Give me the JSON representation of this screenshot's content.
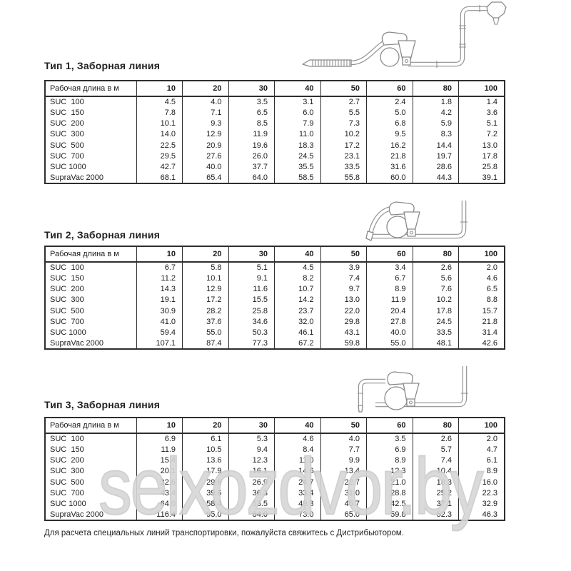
{
  "document": {
    "header_label": "Рабочая длина в м",
    "columns": [
      "10",
      "20",
      "30",
      "40",
      "50",
      "60",
      "80",
      "100"
    ],
    "sections": [
      {
        "title": "Тип 1, Заборная линия",
        "rows": [
          {
            "model": "SUC  100",
            "values": [
              "4.5",
              "4.0",
              "3.5",
              "3.1",
              "2.7",
              "2.4",
              "1.8",
              "1.4"
            ]
          },
          {
            "model": "SUC  150",
            "values": [
              "7.8",
              "7.1",
              "6.5",
              "6.0",
              "5.5",
              "5.0",
              "4.2",
              "3.6"
            ]
          },
          {
            "model": "SUC  200",
            "values": [
              "10.1",
              "9.3",
              "8.5",
              "7.9",
              "7.3",
              "6.8",
              "5.9",
              "5.1"
            ]
          },
          {
            "model": "SUC  300",
            "values": [
              "14.0",
              "12.9",
              "11.9",
              "11.0",
              "10.2",
              "9.5",
              "8.3",
              "7.2"
            ]
          },
          {
            "model": "SUC  500",
            "values": [
              "22.5",
              "20.9",
              "19.6",
              "18.3",
              "17.2",
              "16.2",
              "14.4",
              "13.0"
            ]
          },
          {
            "model": "SUC  700",
            "values": [
              "29.5",
              "27.6",
              "26.0",
              "24.5",
              "23.1",
              "21.8",
              "19.7",
              "17.8"
            ]
          },
          {
            "model": "SUC 1000",
            "values": [
              "42.7",
              "40.0",
              "37.7",
              "35.5",
              "33.5",
              "31.6",
              "28.6",
              "25.8"
            ]
          },
          {
            "model": "SupraVac 2000",
            "values": [
              "68.1",
              "65.4",
              "64.0",
              "58.5",
              "55.8",
              "60.0",
              "44.3",
              "39.1"
            ]
          }
        ]
      },
      {
        "title": "Тип 2, Заборная линия",
        "rows": [
          {
            "model": "SUC  100",
            "values": [
              "6.7",
              "5.8",
              "5.1",
              "4.5",
              "3.9",
              "3.4",
              "2.6",
              "2.0"
            ]
          },
          {
            "model": "SUC  150",
            "values": [
              "11.2",
              "10.1",
              "9.1",
              "8.2",
              "7.4",
              "6.7",
              "5.6",
              "4.6"
            ]
          },
          {
            "model": "SUC  200",
            "values": [
              "14.3",
              "12.9",
              "11.6",
              "10.7",
              "9.7",
              "8.9",
              "7.6",
              "6.5"
            ]
          },
          {
            "model": "SUC  300",
            "values": [
              "19.1",
              "17.2",
              "15.5",
              "14.2",
              "13.0",
              "11.9",
              "10.2",
              "8.8"
            ]
          },
          {
            "model": "SUC  500",
            "values": [
              "30.9",
              "28.2",
              "25.8",
              "23.7",
              "22.0",
              "20.4",
              "17.8",
              "15.7"
            ]
          },
          {
            "model": "SUC  700",
            "values": [
              "41.0",
              "37.6",
              "34.6",
              "32.0",
              "29.8",
              "27.8",
              "24.5",
              "21.8"
            ]
          },
          {
            "model": "SUC 1000",
            "values": [
              "59.4",
              "55.0",
              "50.3",
              "46.1",
              "43.1",
              "40.0",
              "33.5",
              "31.4"
            ]
          },
          {
            "model": "SupraVac 2000",
            "values": [
              "107.1",
              "87.4",
              "77.3",
              "67.2",
              "59.8",
              "55.0",
              "48.1",
              "42.6"
            ]
          }
        ]
      },
      {
        "title": "Тип 3, Заборная линия",
        "rows": [
          {
            "model": "SUC  100",
            "values": [
              "6.9",
              "6.1",
              "5.3",
              "4.6",
              "4.0",
              "3.5",
              "2.6",
              "2.0"
            ]
          },
          {
            "model": "SUC  150",
            "values": [
              "11.9",
              "10.5",
              "9.4",
              "8.4",
              "7.7",
              "6.9",
              "5.7",
              "4.7"
            ]
          },
          {
            "model": "SUC  200",
            "values": [
              "15.4",
              "13.6",
              "12.3",
              "11.0",
              "9.9",
              "8.9",
              "7.4",
              "6.1"
            ]
          },
          {
            "model": "SUC  300",
            "values": [
              "20.1",
              "17.9",
              "16.1",
              "14.6",
              "13.4",
              "12.3",
              "10.4",
              "8.9"
            ]
          },
          {
            "model": "SUC  500",
            "values": [
              "32.6",
              "29.6",
              "26.9",
              "24.7",
              "22.7",
              "21.0",
              "18.3",
              "16.0"
            ]
          },
          {
            "model": "SUC  700",
            "values": [
              "43.4",
              "39.6",
              "36.3",
              "33.4",
              "31.0",
              "28.8",
              "25.2",
              "22.3"
            ]
          },
          {
            "model": "SUC 1000",
            "values": [
              "64.0",
              "58.4",
              "53.5",
              "49.3",
              "45.7",
              "42.5",
              "37.1",
              "32.9"
            ]
          },
          {
            "model": "SupraVac 2000",
            "values": [
              "116.4",
              "95.0",
              "84.0",
              "73.0",
              "65.0",
              "59.8",
              "52.3",
              "46.3"
            ]
          }
        ]
      }
    ],
    "footer": "Для расчета специальных линий транспортировки, пожалуйста свяжитесь с Дистрибьютором.",
    "watermark": "selxozdvor.by",
    "colors": {
      "text": "#1c1c1c",
      "border": "#2e2e2e",
      "diagram_line": "#8f8f8f",
      "watermark": "#cccccc"
    }
  }
}
